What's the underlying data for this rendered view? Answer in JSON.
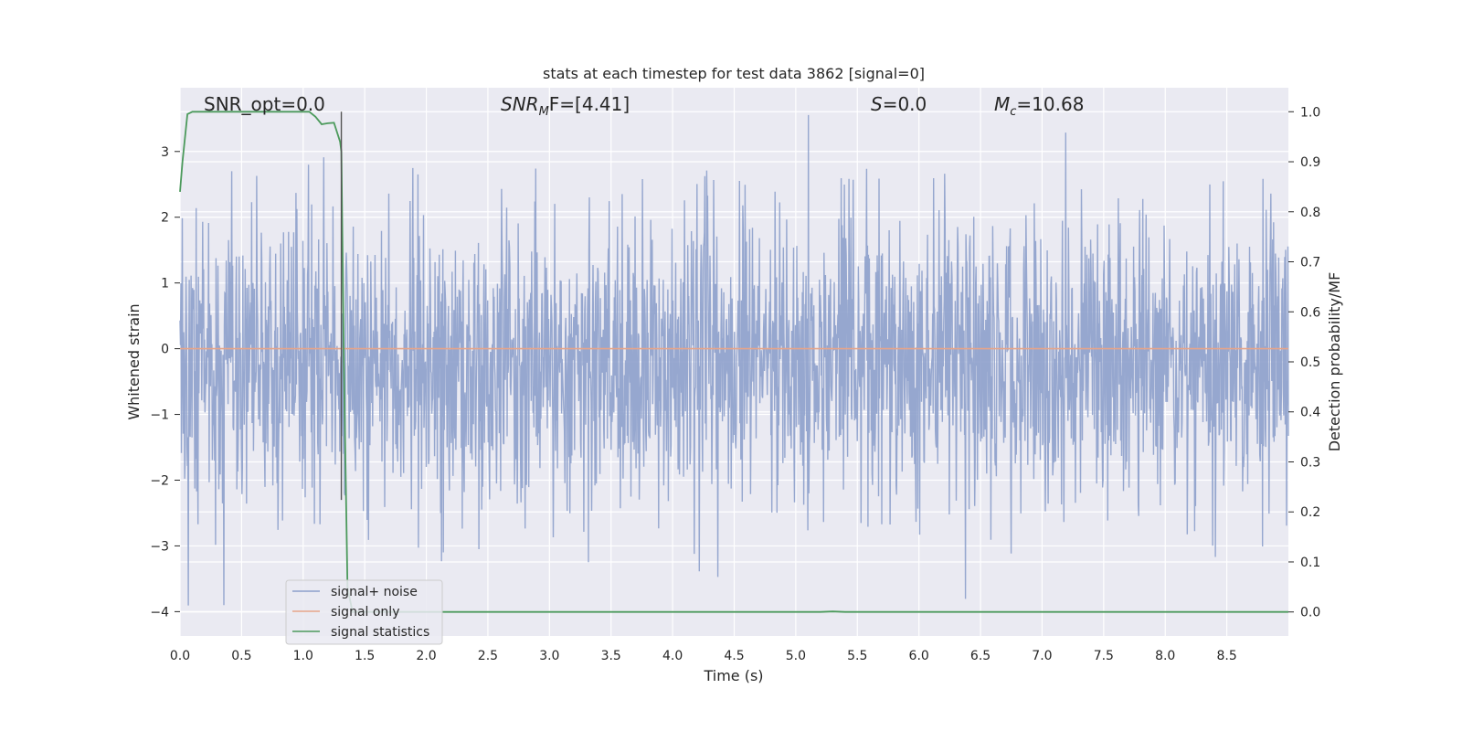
{
  "chart_data": {
    "type": "line",
    "title": "stats at each timestep for test data 3862 [signal=0]",
    "xlabel": "Time (s)",
    "ylabel_left": "Whitened strain",
    "ylabel_right": "Detection probability/MF",
    "xlim": [
      0,
      9.0
    ],
    "ylim_left": [
      -4.37,
      3.97
    ],
    "ylim_right": [
      -0.048,
      1.048
    ],
    "x_ticks": [
      "0.0",
      "0.5",
      "1.0",
      "1.5",
      "2.0",
      "2.5",
      "3.0",
      "3.5",
      "4.0",
      "4.5",
      "5.0",
      "5.5",
      "6.0",
      "6.5",
      "7.0",
      "7.5",
      "8.0",
      "8.5"
    ],
    "y_left_ticks": [
      "3",
      "2",
      "1",
      "0",
      "−1",
      "−2",
      "−3",
      "−4"
    ],
    "y_right_ticks": [
      "1.0",
      "0.9",
      "0.8",
      "0.7",
      "0.6",
      "0.5",
      "0.4",
      "0.3",
      "0.2",
      "0.1",
      "0.0"
    ],
    "grid": true,
    "legend_position": "lower-left",
    "vline_x": 1.31,
    "annotations": {
      "snr_opt": "SNR_opt=0.0",
      "snr_mf_prefix": "SNR",
      "snr_mf_sub": "M",
      "snr_mf_suffix": "F=[4.41]",
      "s_prefix": "S",
      "s_suffix": "=0.0",
      "mc_prefix": "M",
      "mc_sub": "c",
      "mc_suffix": "=10.68"
    },
    "series": [
      {
        "name": "signal+ noise",
        "color": "#8da0cb",
        "axis": "left",
        "description_values": "whitened noise, roughly between -4 and 3.6",
        "amplitude_range": [
          -4.0,
          3.6
        ]
      },
      {
        "name": "signal only",
        "color": "#e6a58a",
        "axis": "left",
        "x": [
          0,
          9.0
        ],
        "values": [
          0,
          0
        ]
      },
      {
        "name": "signal statistics",
        "color": "#4c9a5c",
        "axis": "right",
        "x": [
          0.0,
          0.02,
          0.06,
          0.1,
          0.15,
          0.2,
          0.3,
          0.5,
          0.7,
          0.9,
          1.0,
          1.05,
          1.1,
          1.15,
          1.2,
          1.25,
          1.3,
          1.31,
          1.33,
          1.36,
          1.4,
          1.5,
          2.0,
          3.0,
          4.0,
          5.0,
          5.2,
          5.3,
          5.4,
          6.0,
          7.0,
          8.0,
          9.0
        ],
        "values": [
          0.84,
          0.9,
          0.995,
          1.0,
          1.0,
          1.0,
          1.0,
          1.0,
          1.0,
          1.0,
          1.0,
          1.0,
          0.99,
          0.975,
          0.977,
          0.978,
          0.94,
          0.92,
          0.5,
          0.05,
          0.0,
          0.0,
          0.0,
          0.0,
          0.0,
          0.0,
          0.0,
          0.001,
          0.0,
          0.0,
          0.0,
          0.0,
          0.0
        ]
      }
    ]
  },
  "colors": {
    "plot_bg": "#eaeaf2",
    "grid": "#ffffff",
    "noise": "#8da0cb",
    "signal": "#e6a58a",
    "stats": "#4c9a5c",
    "vline": "#555555"
  }
}
